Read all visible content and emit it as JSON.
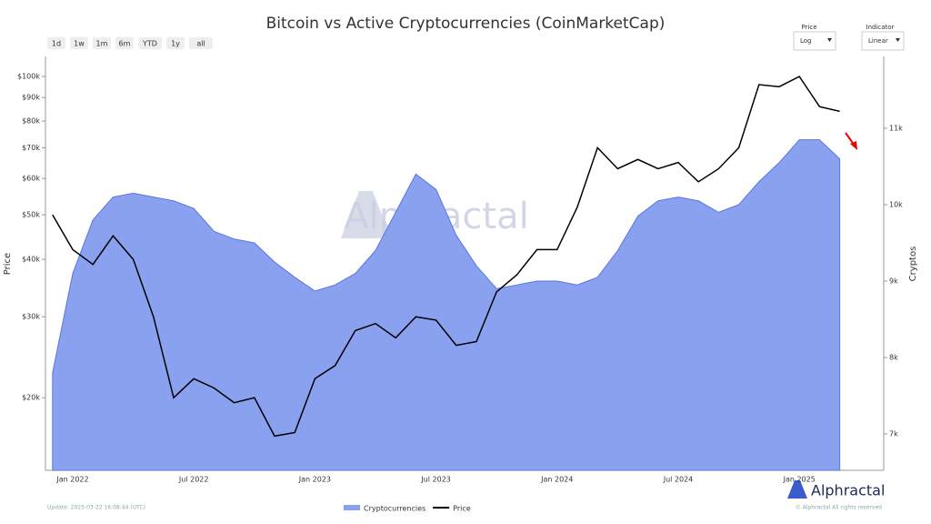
{
  "chart_data": {
    "type": "line-area",
    "title": "Bitcoin vs Active Cryptocurrencies (CoinMarketCap)",
    "y_label": "Price",
    "y2_label": "Cryptos",
    "categories": [
      null,
      "Jan 2022",
      null,
      null,
      null,
      null,
      null,
      "Jul 2022",
      null,
      null,
      null,
      null,
      null,
      "Jan 2023",
      null,
      null,
      null,
      null,
      null,
      "Jul 2023",
      null,
      null,
      null,
      null,
      null,
      "Jan 2024",
      null,
      null,
      null,
      null,
      null,
      "Jul 2024",
      null,
      null,
      null,
      null,
      null,
      "Jan 2025",
      null,
      null
    ],
    "series": [
      {
        "name": "Cryptocurrencies",
        "kind": "area",
        "axis": "y2",
        "color": "#8aa1f0",
        "values": [
          7800,
          9100,
          9800,
          10100,
          10150,
          10100,
          10050,
          9950,
          9650,
          9550,
          9500,
          9250,
          9050,
          8870,
          8950,
          9100,
          9400,
          9900,
          10400,
          10200,
          9600,
          9200,
          8900,
          8950,
          9000,
          9000,
          8950,
          9050,
          9400,
          9850,
          10050,
          10100,
          10050,
          9900,
          10000,
          10300,
          10550,
          10850,
          10850,
          10600
        ]
      },
      {
        "name": "Price",
        "kind": "line",
        "axis": "y",
        "color": "#000000",
        "values": [
          50000,
          42000,
          39000,
          45000,
          40000,
          30000,
          20000,
          22000,
          21000,
          19500,
          20000,
          16500,
          16800,
          22000,
          23500,
          28000,
          29000,
          27000,
          30000,
          29500,
          26000,
          26500,
          34000,
          37000,
          42000,
          42000,
          52000,
          70000,
          63000,
          66000,
          63000,
          65000,
          59000,
          63000,
          70000,
          96000,
          95000,
          100000,
          86000,
          84000
        ]
      }
    ],
    "ylog": true,
    "ylim": [
      13900,
      110600
    ],
    "yticks": [
      {
        "value": 20000,
        "label": "$20k"
      },
      {
        "value": 30000,
        "label": "$30k"
      },
      {
        "value": 40000,
        "label": "$40k"
      },
      {
        "value": 50000,
        "label": "$50k"
      },
      {
        "value": 60000,
        "label": "$60k"
      },
      {
        "value": 70000,
        "label": "$70k"
      },
      {
        "value": 80000,
        "label": "$80k"
      },
      {
        "value": 90000,
        "label": "$90k"
      },
      {
        "value": 100000,
        "label": "$100k"
      }
    ],
    "y2lim": [
      6524,
      11940
    ],
    "y2ticks": [
      {
        "value": 7000,
        "label": "7k"
      },
      {
        "value": 8000,
        "label": "8k"
      },
      {
        "value": 9000,
        "label": "9k"
      },
      {
        "value": 10000,
        "label": "10k"
      },
      {
        "value": 11000,
        "label": "11k"
      }
    ],
    "grid": false
  },
  "ui": {
    "ranges": [
      "1d",
      "1w",
      "1m",
      "6m",
      "YTD",
      "1y",
      "all"
    ],
    "price_label": "Price",
    "price_value": "Log",
    "indicator_label": "Indicator",
    "indicator_value": "Linear",
    "watermark": "Alphractal",
    "brand": "Alphractal",
    "update": "Update: 2025-03-22 16:08:44 (UTC)",
    "copyright": "© Alphractal All rights reserved"
  }
}
